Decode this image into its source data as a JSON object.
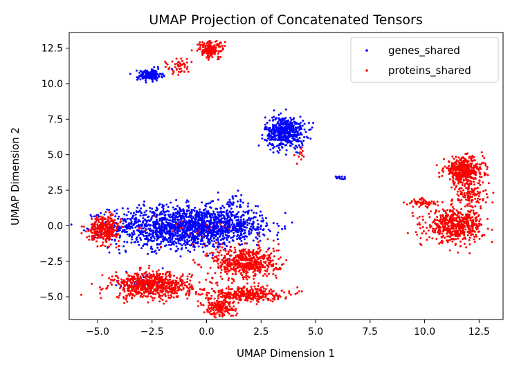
{
  "chart_data": {
    "type": "scatter",
    "title": "UMAP Projection of Concatenated Tensors",
    "xlabel": "UMAP Dimension 1",
    "ylabel": "UMAP Dimension 2",
    "xlim": [
      -6.3,
      13.6
    ],
    "ylim": [
      -6.6,
      13.6
    ],
    "x_ticks": [
      -5.0,
      -2.5,
      0.0,
      2.5,
      5.0,
      7.5,
      10.0,
      12.5
    ],
    "y_ticks": [
      -5.0,
      -2.5,
      0.0,
      2.5,
      5.0,
      7.5,
      10.0,
      12.5
    ],
    "x_tick_labels": [
      "−5.0",
      "−2.5",
      "0.0",
      "2.5",
      "5.0",
      "7.5",
      "10.0",
      "12.5"
    ],
    "y_tick_labels": [
      "−5.0",
      "−2.5",
      "0.0",
      "2.5",
      "5.0",
      "7.5",
      "10.0",
      "12.5"
    ],
    "grid": false,
    "legend_position": "top-right",
    "series": [
      {
        "name": "genes_shared",
        "color": "#0000ff",
        "clusters": [
          {
            "cx": -1.2,
            "cy": -0.1,
            "sx": 1.6,
            "sy": 0.75,
            "n": 1400
          },
          {
            "cx": 1.0,
            "cy": 0.0,
            "sx": 0.9,
            "sy": 0.55,
            "n": 350
          },
          {
            "cx": 3.6,
            "cy": 6.6,
            "sx": 0.45,
            "sy": 0.55,
            "n": 500
          },
          {
            "cx": -2.6,
            "cy": 10.6,
            "sx": 0.28,
            "sy": 0.2,
            "n": 160
          },
          {
            "cx": 6.1,
            "cy": 3.4,
            "sx": 0.1,
            "sy": 0.06,
            "n": 20
          },
          {
            "cx": -2.8,
            "cy": -4.0,
            "sx": 0.6,
            "sy": 0.3,
            "n": 30
          },
          {
            "cx": 1.0,
            "cy": 1.5,
            "sx": 0.3,
            "sy": 0.35,
            "n": 35
          }
        ]
      },
      {
        "name": "proteins_shared",
        "color": "#ff0000",
        "clusters": [
          {
            "cx": 11.8,
            "cy": 3.9,
            "sx": 0.45,
            "sy": 0.45,
            "n": 420
          },
          {
            "cx": 11.4,
            "cy": 0.0,
            "sx": 0.65,
            "sy": 0.55,
            "n": 520
          },
          {
            "cx": 12.1,
            "cy": 2.2,
            "sx": 0.4,
            "sy": 0.5,
            "n": 120
          },
          {
            "cx": 9.9,
            "cy": 1.6,
            "sx": 0.35,
            "sy": 0.15,
            "n": 60
          },
          {
            "cx": -2.5,
            "cy": -4.2,
            "sx": 0.9,
            "sy": 0.45,
            "n": 650
          },
          {
            "cx": -4.7,
            "cy": -0.2,
            "sx": 0.35,
            "sy": 0.45,
            "n": 300
          },
          {
            "cx": 1.8,
            "cy": -2.6,
            "sx": 0.75,
            "sy": 0.6,
            "n": 520
          },
          {
            "cx": 1.7,
            "cy": -4.8,
            "sx": 0.9,
            "sy": 0.25,
            "n": 320
          },
          {
            "cx": 0.6,
            "cy": -5.8,
            "sx": 0.35,
            "sy": 0.3,
            "n": 180
          },
          {
            "cx": 0.2,
            "cy": 12.4,
            "sx": 0.3,
            "sy": 0.3,
            "n": 170
          },
          {
            "cx": -1.3,
            "cy": 11.2,
            "sx": 0.3,
            "sy": 0.3,
            "n": 45
          },
          {
            "cx": 4.2,
            "cy": 5.0,
            "sx": 0.15,
            "sy": 0.3,
            "n": 12
          },
          {
            "cx": -1.0,
            "cy": -0.3,
            "sx": 1.2,
            "sy": 0.6,
            "n": 20
          }
        ]
      }
    ]
  }
}
